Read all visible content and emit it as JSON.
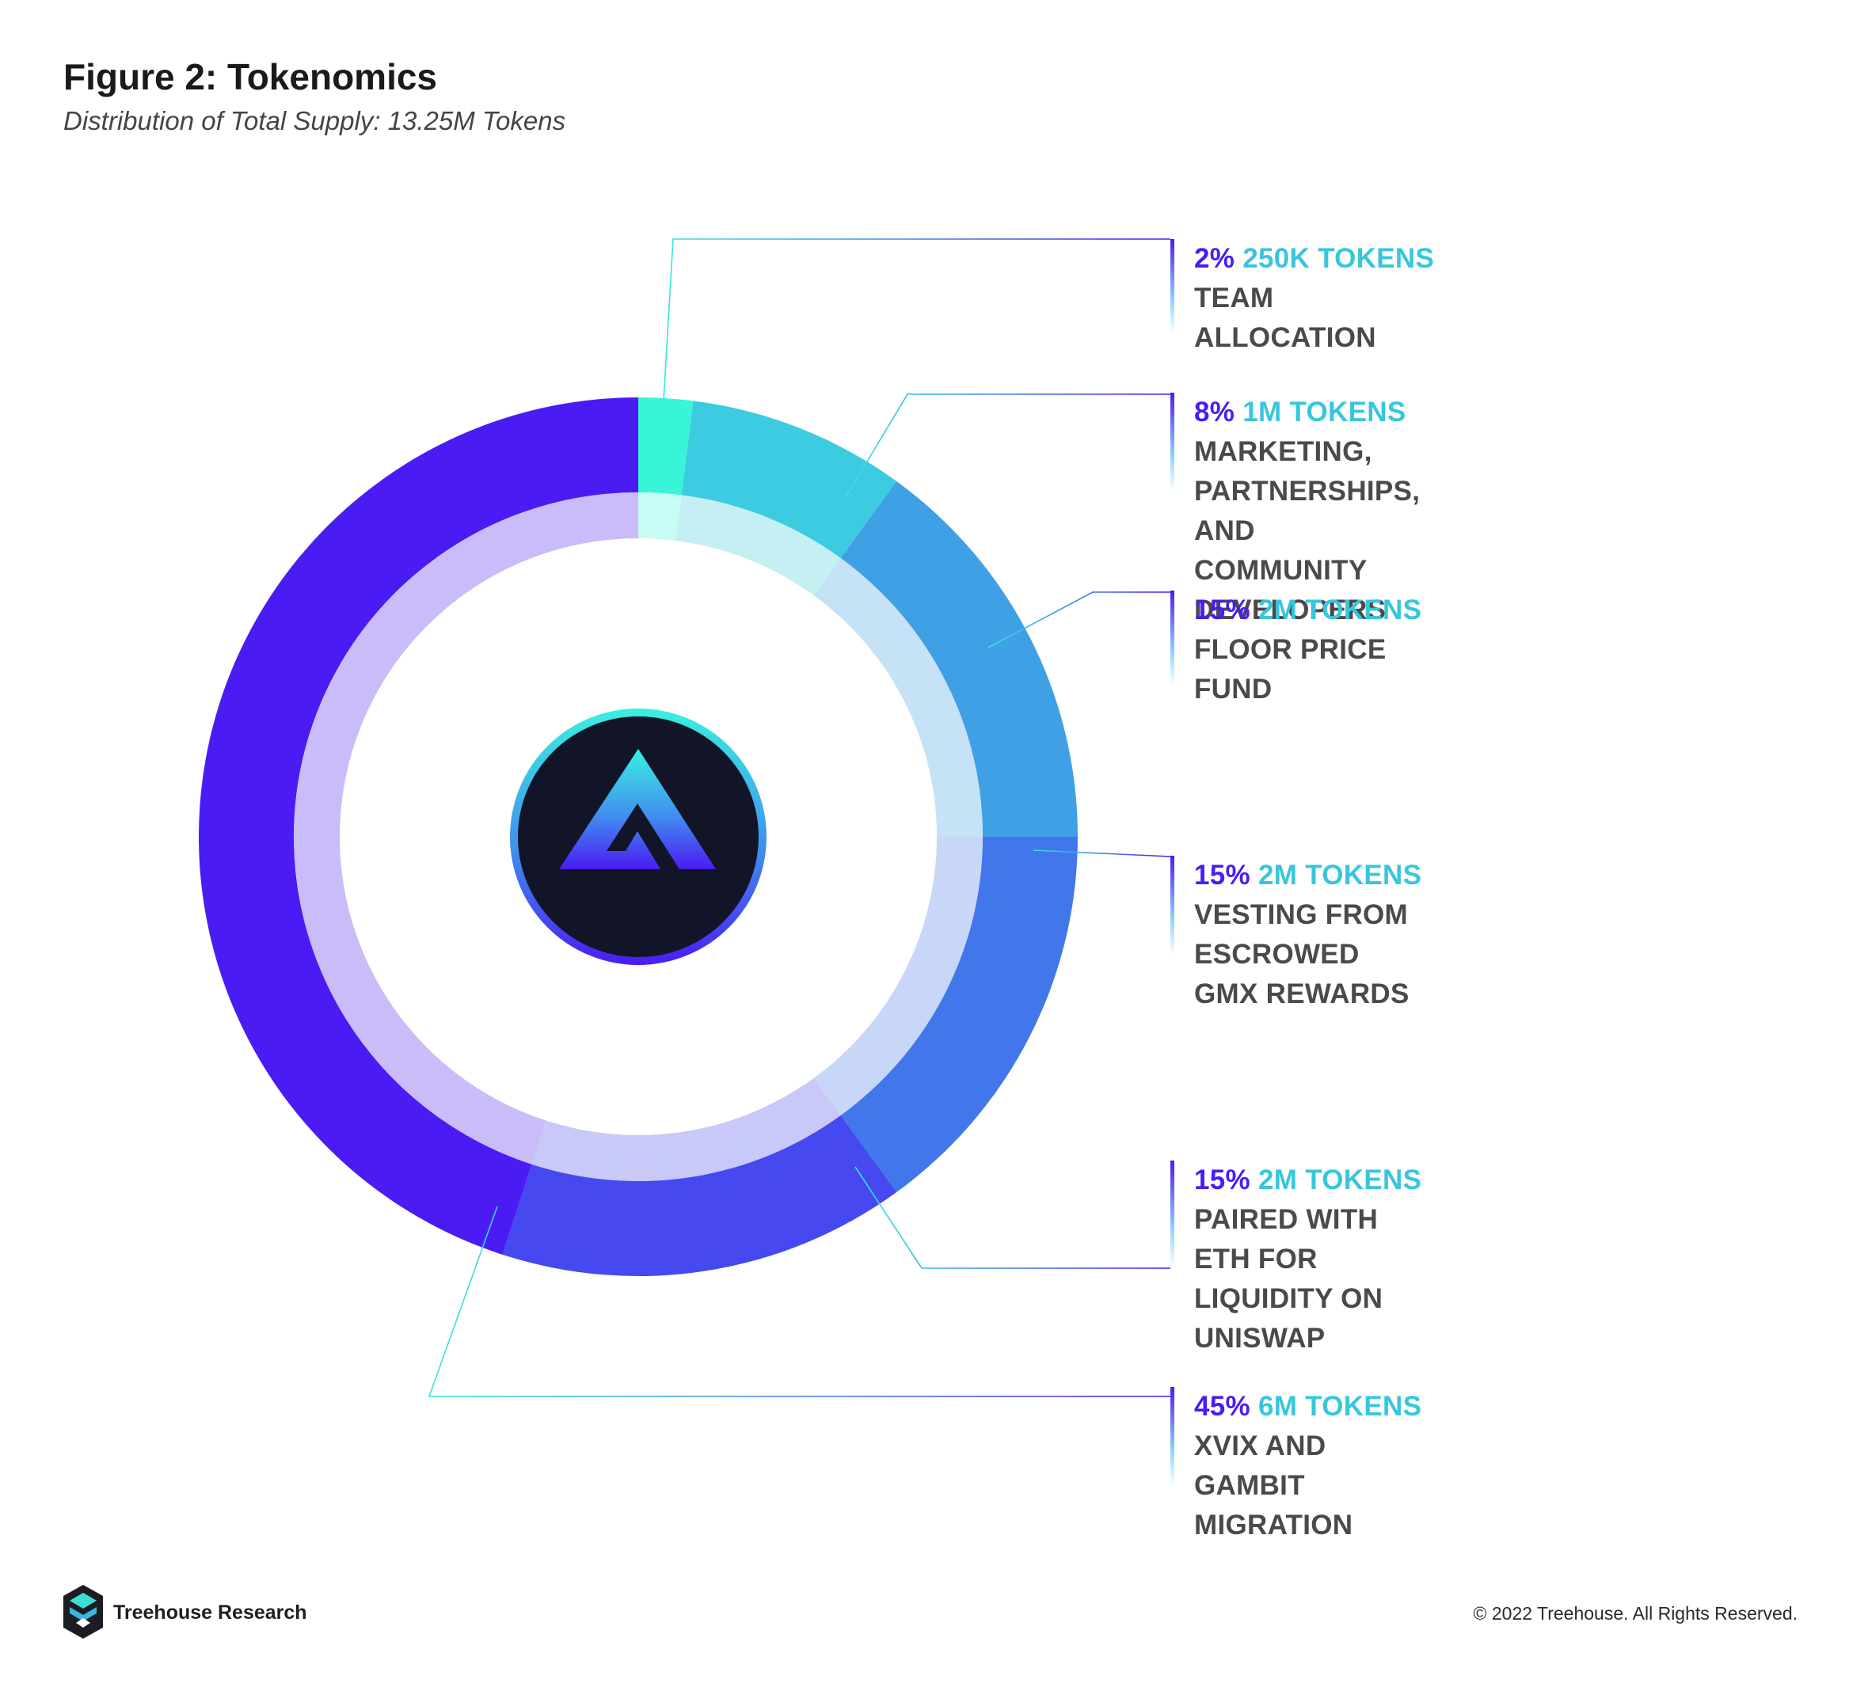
{
  "header": {
    "title": "Figure 2: Tokenomics",
    "subtitle": "Distribution of Total Supply: 13.25M Tokens"
  },
  "chart_data": {
    "type": "pie",
    "variant": "donut",
    "slices": [
      {
        "percent": 2,
        "percent_label": "2%",
        "tokens_label": "250K TOKENS",
        "label": "TEAM ALLOCATION",
        "color": "#38f5d8",
        "inner_color": "#c7fbf3"
      },
      {
        "percent": 8,
        "percent_label": "8%",
        "tokens_label": "1M TOKENS",
        "label": "MARKETING, PARTNERSHIPS,\nAND COMMUNITY DEVELOPERS",
        "color": "#3ccbe0",
        "inner_color": "#c6eff4"
      },
      {
        "percent": 15,
        "percent_label": "15%",
        "tokens_label": "2M TOKENS",
        "label": "FLOOR PRICE FUND",
        "color": "#40a0e5",
        "inner_color": "#c6e2f7"
      },
      {
        "percent": 15,
        "percent_label": "15%",
        "tokens_label": "2M TOKENS",
        "label": "VESTING FROM ESCROWED\nGMX REWARDS",
        "color": "#4177ea",
        "inner_color": "#c8d6f8"
      },
      {
        "percent": 15,
        "percent_label": "15%",
        "tokens_label": "2M TOKENS",
        "label": "PAIRED WITH ETH FOR\nLIQUIDITY ON UNISWAP",
        "color": "#4549ef",
        "inner_color": "#c8c8f9"
      },
      {
        "percent": 45,
        "percent_label": "45%",
        "tokens_label": "6M TOKENS",
        "label": "XVIX AND GAMBIT MIGRATION",
        "color": "#4a1cf3",
        "inner_color": "#c9bcf9"
      }
    ]
  },
  "footer": {
    "brand": "Treehouse Research",
    "copyright": "© 2022 Treehouse. All Rights Reserved."
  }
}
